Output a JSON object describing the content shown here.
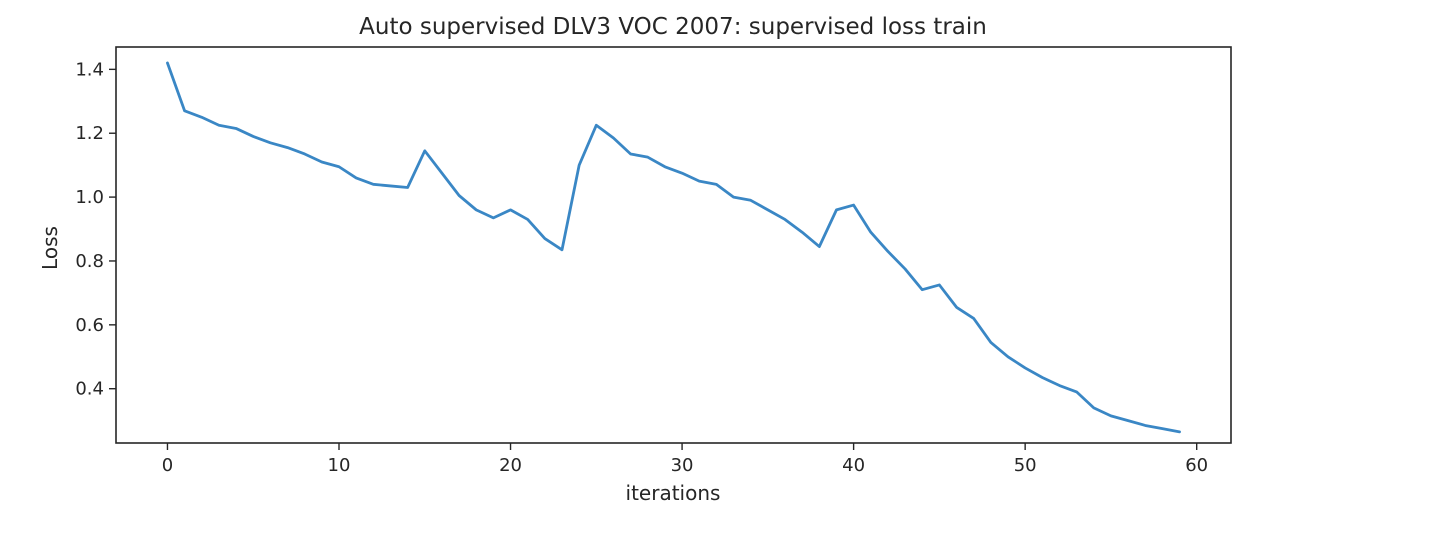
{
  "chart_data": {
    "type": "line",
    "title": "Auto supervised DLV3 VOC 2007: supervised loss train",
    "xlabel": "iterations",
    "ylabel": "Loss",
    "xlim": [
      -3,
      62
    ],
    "ylim": [
      0.23,
      1.47
    ],
    "xticks": [
      0,
      10,
      20,
      30,
      40,
      50,
      60
    ],
    "yticks": [
      0.4,
      0.6,
      0.8,
      1.0,
      1.2,
      1.4
    ],
    "ytick_labels": [
      "0.4",
      "0.6",
      "0.8",
      "1.0",
      "1.2",
      "1.4"
    ],
    "grid": false,
    "legend": "none",
    "line_color": "#3a87c5",
    "series": [
      {
        "x": [
          0,
          1,
          2,
          3,
          4,
          5,
          6,
          7,
          8,
          9,
          10,
          11,
          12,
          13,
          14,
          15,
          16,
          17,
          18,
          19,
          20,
          21,
          22,
          23,
          24,
          25,
          26,
          27,
          28,
          29,
          30,
          31,
          32,
          33,
          34,
          35,
          36,
          37,
          38,
          39,
          40,
          41,
          42,
          43,
          44,
          45,
          46,
          47,
          48,
          49,
          50,
          51,
          52,
          53,
          54,
          55,
          56,
          57,
          58,
          59
        ],
        "values": [
          1.42,
          1.27,
          1.25,
          1.225,
          1.215,
          1.19,
          1.17,
          1.155,
          1.135,
          1.11,
          1.095,
          1.06,
          1.04,
          1.035,
          1.03,
          1.145,
          1.075,
          1.005,
          0.96,
          0.935,
          0.96,
          0.93,
          0.87,
          0.835,
          1.1,
          1.225,
          1.185,
          1.135,
          1.125,
          1.095,
          1.075,
          1.05,
          1.04,
          1.0,
          0.99,
          0.96,
          0.93,
          0.89,
          0.845,
          0.96,
          0.975,
          0.89,
          0.83,
          0.775,
          0.71,
          0.725,
          0.655,
          0.62,
          0.545,
          0.5,
          0.465,
          0.435,
          0.41,
          0.39,
          0.34,
          0.315,
          0.3,
          0.285,
          0.275,
          0.265
        ]
      }
    ]
  }
}
